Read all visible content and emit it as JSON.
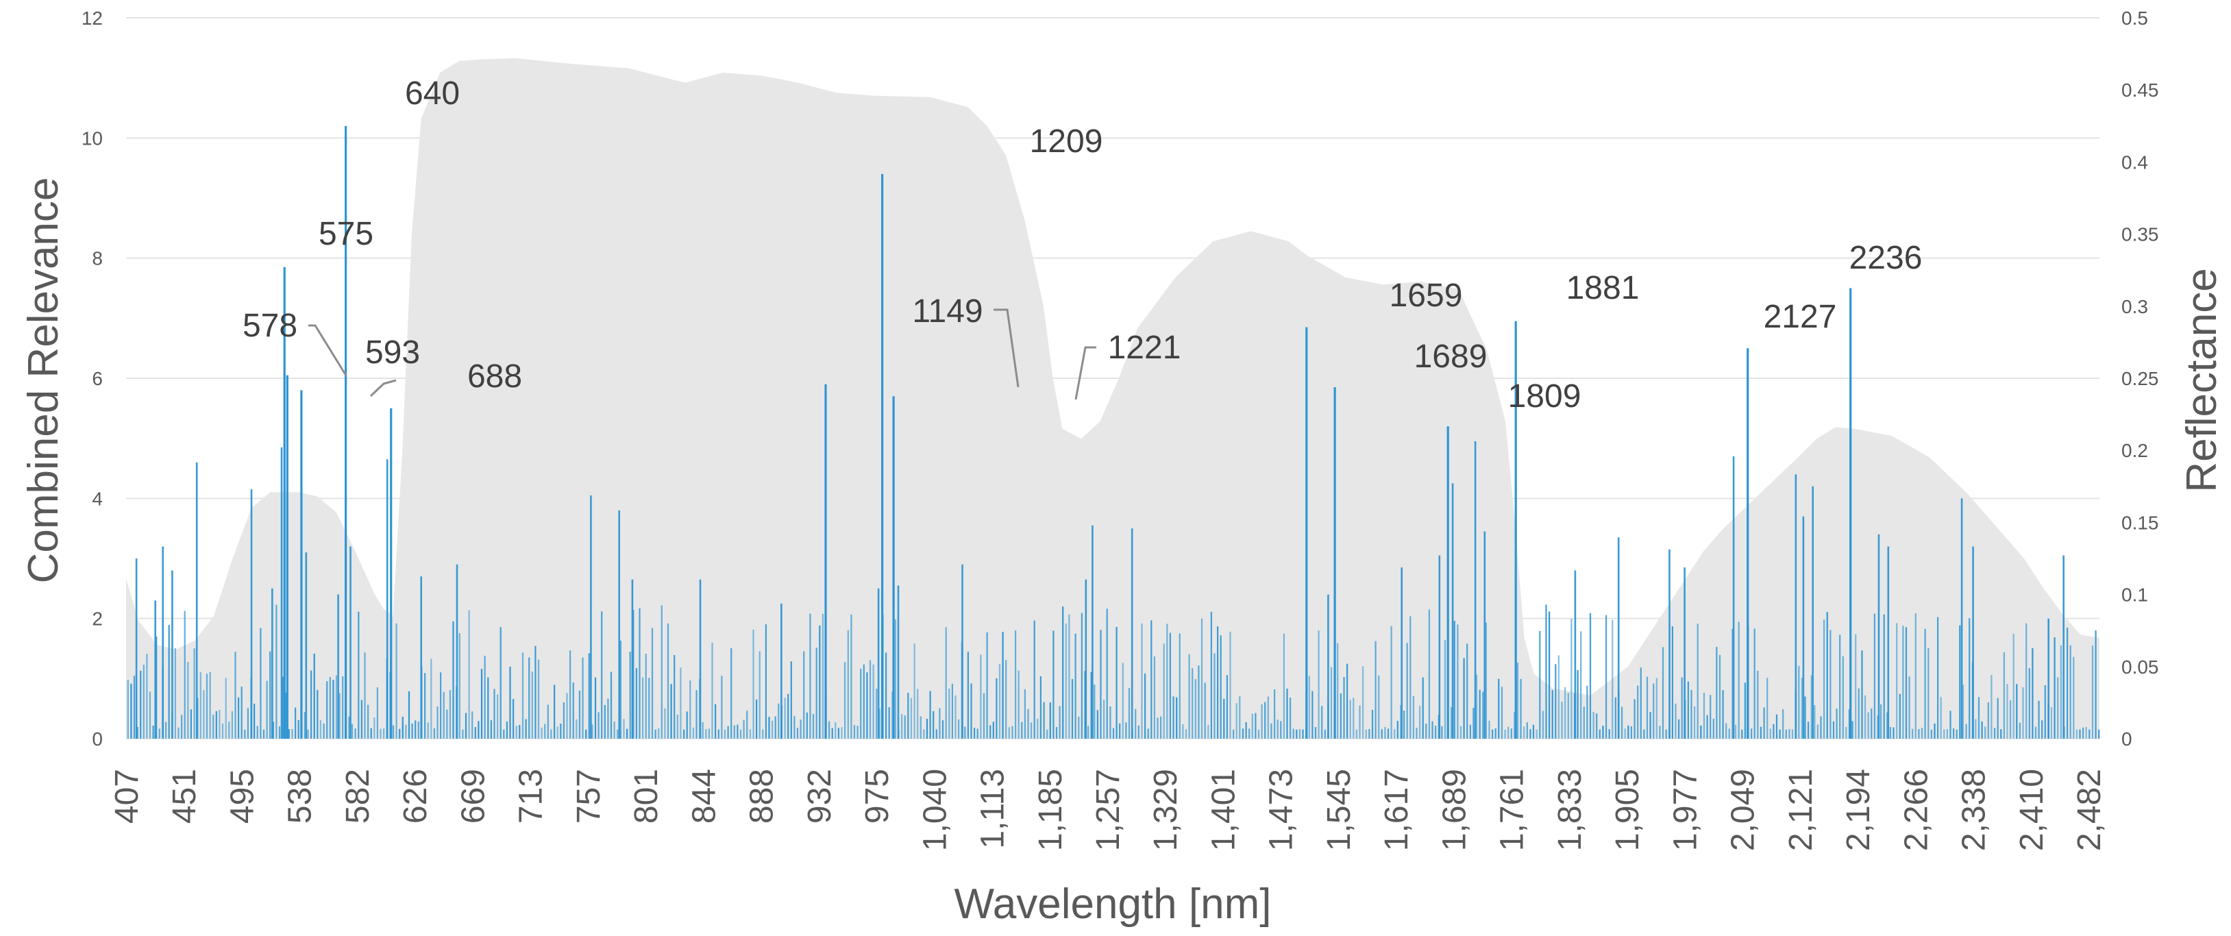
{
  "chart_data": {
    "type": "bar",
    "xlabel": "Wavelength [nm]",
    "ylabel": "Combined Relevance",
    "y2label": "Reflectance",
    "ylim": [
      0,
      12
    ],
    "y2lim": [
      0,
      0.5
    ],
    "yticks": [
      "0",
      "2",
      "4",
      "6",
      "8",
      "10",
      "12"
    ],
    "y2ticks": [
      "0",
      "0.05",
      "0.1",
      "0.15",
      "0.2",
      "0.25",
      "0.3",
      "0.35",
      "0.4",
      "0.45",
      "0.5"
    ],
    "x_range_nm": [
      407,
      2500
    ],
    "xtick_labels": [
      "407",
      "451",
      "495",
      "538",
      "582",
      "626",
      "669",
      "713",
      "757",
      "801",
      "844",
      "888",
      "932",
      "975",
      "1,040",
      "1,113",
      "1,185",
      "1,257",
      "1,329",
      "1,401",
      "1,473",
      "1,545",
      "1,617",
      "1,689",
      "1,761",
      "1,833",
      "1,905",
      "1,977",
      "2,049",
      "2,121",
      "2,194",
      "2,266",
      "2,338",
      "2,410",
      "2,482"
    ],
    "grid": true,
    "colors": {
      "bars": "#2e95d3",
      "reflectance_area": "#e7e7e7",
      "grid": "#e3e3e3",
      "text": "#595959"
    },
    "reflectance_area": {
      "wavelength_nm": [
        407,
        420,
        440,
        460,
        480,
        500,
        520,
        540,
        560,
        575,
        590,
        610,
        630,
        650,
        670,
        680,
        690,
        700,
        710,
        720,
        740,
        760,
        780,
        820,
        880,
        940,
        1000,
        1040,
        1080,
        1120,
        1160,
        1180,
        1200,
        1260,
        1300,
        1320,
        1340,
        1360,
        1380,
        1390,
        1400,
        1420,
        1440,
        1460,
        1480,
        1520,
        1560,
        1600,
        1640,
        1660,
        1700,
        1740,
        1780,
        1820,
        1850,
        1870,
        1880,
        1890,
        1900,
        1920,
        1960,
        2000,
        2040,
        2060,
        2080,
        2100,
        2140,
        2180,
        2200,
        2220,
        2240,
        2280,
        2320,
        2360,
        2380,
        2400,
        2420,
        2440,
        2460,
        2480,
        2500
      ],
      "reflectance": [
        0.111,
        0.082,
        0.065,
        0.062,
        0.068,
        0.085,
        0.125,
        0.16,
        0.171,
        0.171,
        0.171,
        0.168,
        0.157,
        0.13,
        0.101,
        0.09,
        0.085,
        0.2,
        0.35,
        0.43,
        0.462,
        0.47,
        0.471,
        0.472,
        0.468,
        0.465,
        0.455,
        0.462,
        0.46,
        0.455,
        0.448,
        0.447,
        0.446,
        0.445,
        0.438,
        0.425,
        0.405,
        0.36,
        0.3,
        0.25,
        0.215,
        0.208,
        0.22,
        0.25,
        0.285,
        0.32,
        0.345,
        0.352,
        0.345,
        0.335,
        0.32,
        0.315,
        0.317,
        0.312,
        0.27,
        0.22,
        0.15,
        0.07,
        0.045,
        0.035,
        0.03,
        0.05,
        0.09,
        0.11,
        0.13,
        0.145,
        0.17,
        0.195,
        0.208,
        0.216,
        0.215,
        0.21,
        0.195,
        0.17,
        0.155,
        0.14,
        0.125,
        0.105,
        0.087,
        0.072,
        0.07
      ]
    },
    "bars": {
      "note_peaks": "labeled values read from the chart",
      "peaks": [
        {
          "label": "575",
          "wavelength": 575,
          "value": 7.85,
          "label_dx": 0,
          "label_dy": -1
        },
        {
          "label": "578",
          "wavelength": 578,
          "value": 6.05,
          "leader": true
        },
        {
          "label": "593",
          "wavelength": 593,
          "value": 5.8,
          "leader": true
        },
        {
          "label": "640",
          "wavelength": 640,
          "value": 10.2
        },
        {
          "label": "688",
          "wavelength": 688,
          "value": 5.5
        },
        {
          "label": "1149",
          "wavelength": 1149,
          "value": 5.9,
          "leader": true
        },
        {
          "label": "1209",
          "wavelength": 1209,
          "value": 9.4
        },
        {
          "label": "1221",
          "wavelength": 1221,
          "value": 5.7,
          "leader": true
        },
        {
          "label": "1659",
          "wavelength": 1659,
          "value": 6.85
        },
        {
          "label": "1689",
          "wavelength": 1689,
          "value": 5.85
        },
        {
          "label": "1809",
          "wavelength": 1809,
          "value": 5.2
        },
        {
          "label": "1881",
          "wavelength": 1881,
          "value": 6.95
        },
        {
          "label": "2127",
          "wavelength": 2127,
          "value": 6.5
        },
        {
          "label": "2236",
          "wavelength": 2236,
          "value": 7.5
        }
      ],
      "secondary": [
        {
          "wavelength": 418,
          "value": 3.0
        },
        {
          "wavelength": 438,
          "value": 2.3
        },
        {
          "wavelength": 446,
          "value": 3.2
        },
        {
          "wavelength": 456,
          "value": 2.8
        },
        {
          "wavelength": 482,
          "value": 4.6
        },
        {
          "wavelength": 540,
          "value": 4.15
        },
        {
          "wavelength": 562,
          "value": 2.5
        },
        {
          "wavelength": 572,
          "value": 4.85
        },
        {
          "wavelength": 598,
          "value": 3.1
        },
        {
          "wavelength": 632,
          "value": 2.4
        },
        {
          "wavelength": 645,
          "value": 3.2
        },
        {
          "wavelength": 684,
          "value": 4.65
        },
        {
          "wavelength": 720,
          "value": 2.7
        },
        {
          "wavelength": 758,
          "value": 2.9
        },
        {
          "wavelength": 900,
          "value": 4.05
        },
        {
          "wavelength": 930,
          "value": 3.8
        },
        {
          "wavelength": 944,
          "value": 2.65
        },
        {
          "wavelength": 1016,
          "value": 2.65
        },
        {
          "wavelength": 1102,
          "value": 2.25
        },
        {
          "wavelength": 1205,
          "value": 2.5
        },
        {
          "wavelength": 1226,
          "value": 2.55
        },
        {
          "wavelength": 1294,
          "value": 2.9
        },
        {
          "wavelength": 1425,
          "value": 2.65
        },
        {
          "wavelength": 1432,
          "value": 3.55
        },
        {
          "wavelength": 1474,
          "value": 3.5
        },
        {
          "wavelength": 1682,
          "value": 2.4
        },
        {
          "wavelength": 1760,
          "value": 2.85
        },
        {
          "wavelength": 1800,
          "value": 3.05
        },
        {
          "wavelength": 1814,
          "value": 4.25
        },
        {
          "wavelength": 1838,
          "value": 4.95
        },
        {
          "wavelength": 1848,
          "value": 3.45
        },
        {
          "wavelength": 1944,
          "value": 2.8
        },
        {
          "wavelength": 1990,
          "value": 3.35
        },
        {
          "wavelength": 2044,
          "value": 3.15
        },
        {
          "wavelength": 2060,
          "value": 2.85
        },
        {
          "wavelength": 2112,
          "value": 4.7
        },
        {
          "wavelength": 2178,
          "value": 4.4
        },
        {
          "wavelength": 2186,
          "value": 3.7
        },
        {
          "wavelength": 2196,
          "value": 4.2
        },
        {
          "wavelength": 2266,
          "value": 3.4
        },
        {
          "wavelength": 2276,
          "value": 3.2
        },
        {
          "wavelength": 2354,
          "value": 4.0
        },
        {
          "wavelength": 2366,
          "value": 3.2
        },
        {
          "wavelength": 2462,
          "value": 3.05
        },
        {
          "wavelength": 2446,
          "value": 2.0
        }
      ]
    }
  }
}
